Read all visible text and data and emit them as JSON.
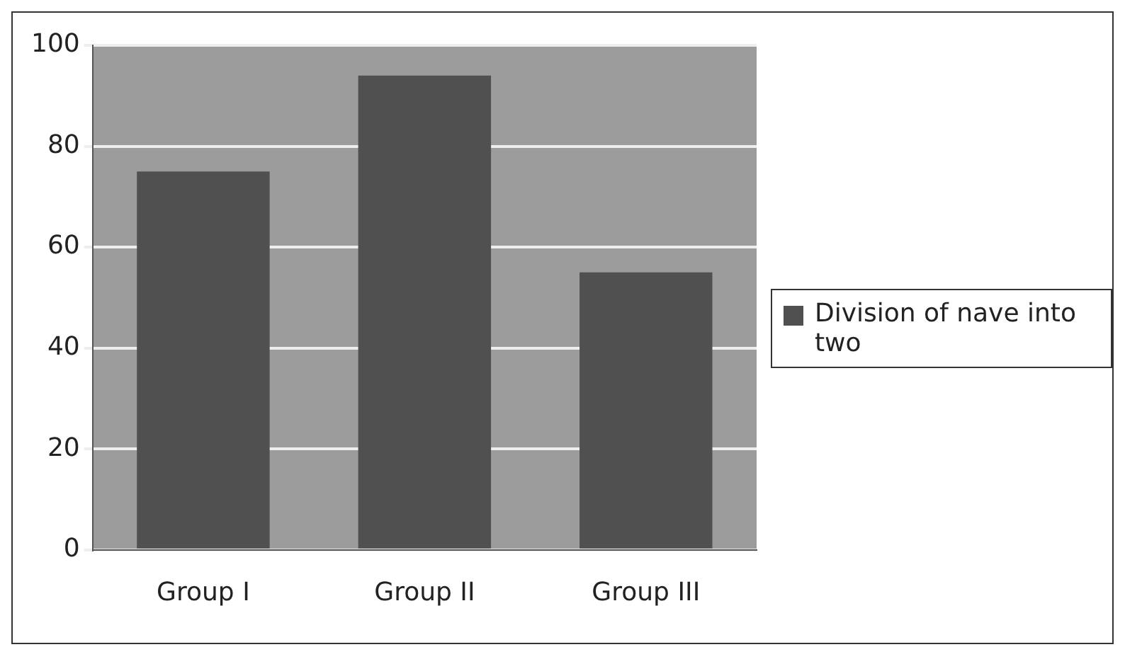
{
  "chart_data": {
    "type": "bar",
    "categories": [
      "Group I",
      "Group II",
      "Group III"
    ],
    "series": [
      {
        "name": "Division of nave into two",
        "color": "#505050",
        "values": [
          75,
          94,
          55
        ]
      }
    ],
    "ylim": [
      0,
      100
    ],
    "yticks": [
      0,
      20,
      40,
      60,
      80,
      100
    ],
    "grid": "y",
    "legend": "right"
  }
}
